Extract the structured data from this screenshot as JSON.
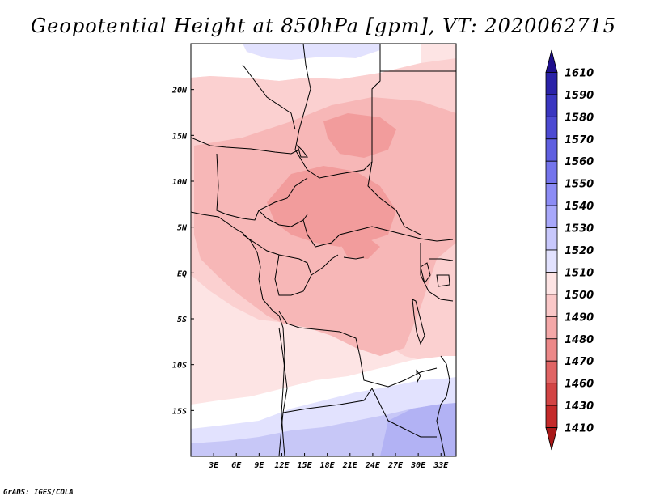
{
  "title": "Geopotential Height at 850hPa [gpm], VT: 2020062715",
  "credit": "GrADS: IGES/COLA",
  "map": {
    "lon_range": [
      0,
      35
    ],
    "lat_range": [
      -20,
      25
    ],
    "x_ticks": [
      "3E",
      "6E",
      "9E",
      "12E",
      "15E",
      "18E",
      "21E",
      "24E",
      "27E",
      "30E",
      "33E"
    ],
    "x_tick_values": [
      3,
      6,
      9,
      12,
      15,
      18,
      21,
      24,
      27,
      30,
      33
    ],
    "y_ticks": [
      "20N",
      "15N",
      "10N",
      "5N",
      "EQ",
      "5S",
      "10S",
      "15S"
    ],
    "y_tick_values": [
      20,
      15,
      10,
      5,
      0,
      -5,
      -10,
      -15
    ]
  },
  "colorbar": {
    "levels": [
      "1610",
      "1590",
      "1580",
      "1570",
      "1560",
      "1550",
      "1540",
      "1530",
      "1520",
      "1510",
      "1500",
      "1490",
      "1480",
      "1470",
      "1460",
      "1430",
      "1410"
    ],
    "colors": [
      "#1e0f8c",
      "#2a22a8",
      "#3a36c0",
      "#4c4ad2",
      "#5f5fe0",
      "#7474ec",
      "#8c8cf5",
      "#a8a8fa",
      "#c8c8fc",
      "#e2e2fe",
      "#fde4e4",
      "#fac8c8",
      "#f4a8a8",
      "#ec8888",
      "#e06464",
      "#d24444",
      "#c42a2a",
      "#a81818"
    ]
  },
  "colors": {
    "h1490": "#f29c9c",
    "h1495": "#f7b7b7",
    "h1500": "#fbd0d0",
    "h1505": "#fde4e4",
    "h1510": "#ffffff",
    "h1515": "#e2e2fe",
    "h1520": "#c7c7f7",
    "h1530": "#b2b2f4"
  }
}
